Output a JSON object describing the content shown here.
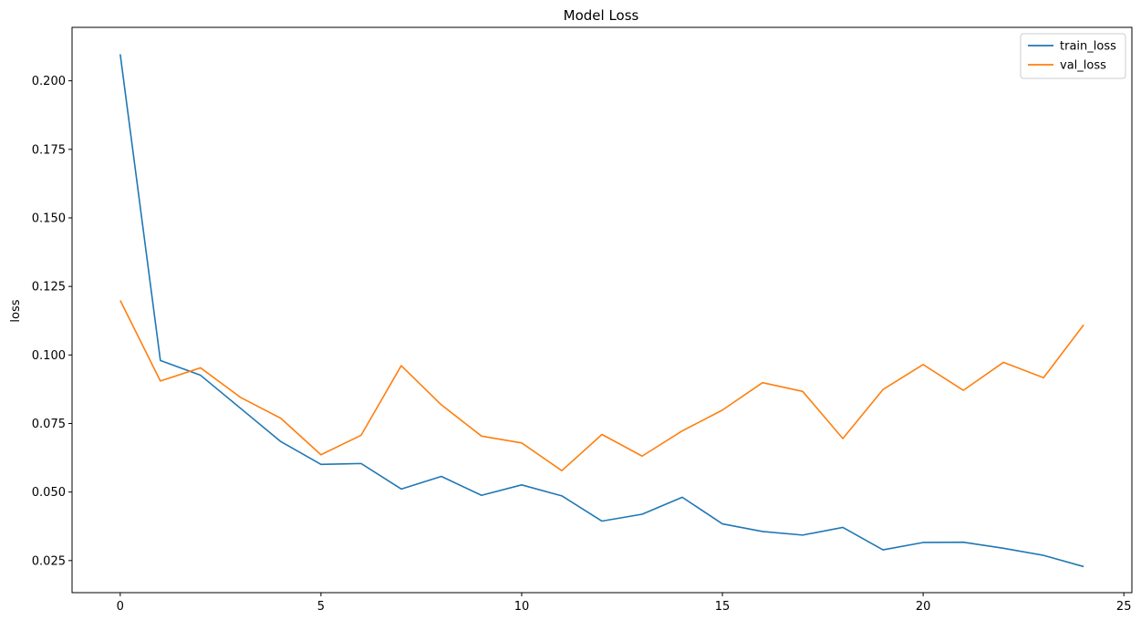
{
  "chart_data": {
    "type": "line",
    "title": "Model Loss",
    "xlabel": "",
    "ylabel": "loss",
    "xlim": [
      -1.2,
      25.2
    ],
    "ylim": [
      0.0133,
      0.2195
    ],
    "x": [
      0,
      1,
      2,
      3,
      4,
      5,
      6,
      7,
      8,
      9,
      10,
      11,
      12,
      13,
      14,
      15,
      16,
      17,
      18,
      19,
      20,
      21,
      22,
      23,
      24
    ],
    "xticks": [
      0,
      5,
      10,
      15,
      20,
      25
    ],
    "xtick_labels": [
      "0",
      "5",
      "10",
      "15",
      "20",
      "25"
    ],
    "yticks": [
      0.025,
      0.05,
      0.075,
      0.1,
      0.125,
      0.15,
      0.175,
      0.2
    ],
    "ytick_labels": [
      "0.025",
      "0.050",
      "0.075",
      "0.100",
      "0.125",
      "0.150",
      "0.175",
      "0.200"
    ],
    "grid": false,
    "legend_position": "top-right",
    "series": [
      {
        "name": "train_loss",
        "color": "#1f77b4",
        "values": [
          0.2097,
          0.098,
          0.0926,
          0.0805,
          0.0684,
          0.0601,
          0.0604,
          0.0511,
          0.0557,
          0.0488,
          0.0526,
          0.0486,
          0.0394,
          0.0419,
          0.0481,
          0.0384,
          0.0356,
          0.0343,
          0.0371,
          0.0289,
          0.0316,
          0.0317,
          0.0295,
          0.0269,
          0.0228
        ]
      },
      {
        "name": "val_loss",
        "color": "#ff7f0e",
        "values": [
          0.1199,
          0.0905,
          0.0953,
          0.0845,
          0.0769,
          0.0636,
          0.0707,
          0.0961,
          0.0818,
          0.0704,
          0.0679,
          0.0578,
          0.071,
          0.0631,
          0.0723,
          0.0799,
          0.0899,
          0.0867,
          0.0695,
          0.0874,
          0.0965,
          0.0871,
          0.0973,
          0.0917,
          0.111
        ]
      }
    ]
  }
}
